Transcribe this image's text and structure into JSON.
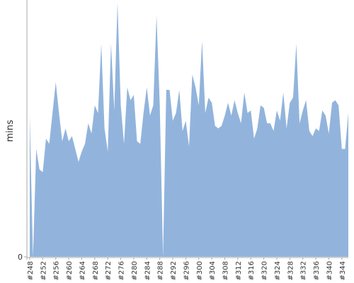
{
  "chart_data": {
    "type": "area",
    "y_label": "mins",
    "categories": [
      "#248",
      null,
      null,
      null,
      "#252",
      null,
      null,
      null,
      "#256",
      null,
      null,
      null,
      "#260",
      null,
      null,
      null,
      "#264",
      null,
      null,
      null,
      "#268",
      null,
      null,
      null,
      "#272",
      null,
      null,
      null,
      "#276",
      null,
      null,
      null,
      "#280",
      null,
      null,
      null,
      "#284",
      null,
      null,
      null,
      "#288",
      null,
      null,
      null,
      "#292",
      null,
      null,
      null,
      "#296",
      null,
      null,
      null,
      "#300",
      null,
      null,
      null,
      "#304",
      null,
      null,
      null,
      "#308",
      null,
      null,
      null,
      "#312",
      null,
      null,
      null,
      "#316",
      null,
      null,
      null,
      "#320",
      null,
      null,
      null,
      "#324",
      null,
      null,
      null,
      "#328",
      null,
      null,
      null,
      "#332",
      null,
      null,
      null,
      "#336",
      null,
      null,
      null,
      "#340",
      null,
      null,
      null,
      "#344",
      null,
      null
    ],
    "values": [
      55,
      0,
      42,
      34,
      33,
      46,
      44,
      56,
      68,
      56,
      45,
      50,
      45,
      47,
      42,
      37,
      41,
      44,
      52,
      48,
      59,
      56,
      83,
      50,
      41,
      83,
      57,
      99,
      59,
      44,
      66,
      61,
      63,
      45,
      44,
      56,
      66,
      55,
      59,
      94,
      59,
      0,
      65,
      65,
      53,
      56,
      65,
      49,
      53,
      43,
      71,
      66,
      59,
      84,
      56,
      62,
      60,
      51,
      50,
      51,
      55,
      60,
      55,
      61,
      56,
      52,
      64,
      56,
      57,
      46,
      50,
      59,
      58,
      52,
      52,
      49,
      57,
      53,
      64,
      50,
      60,
      62,
      83,
      52,
      57,
      61,
      49,
      47,
      50,
      49,
      57,
      55,
      48,
      60,
      61,
      59,
      42,
      42,
      56
    ],
    "color": "#92b4dc",
    "ylim": [
      0,
      100
    ],
    "yticks": [
      0
    ]
  }
}
